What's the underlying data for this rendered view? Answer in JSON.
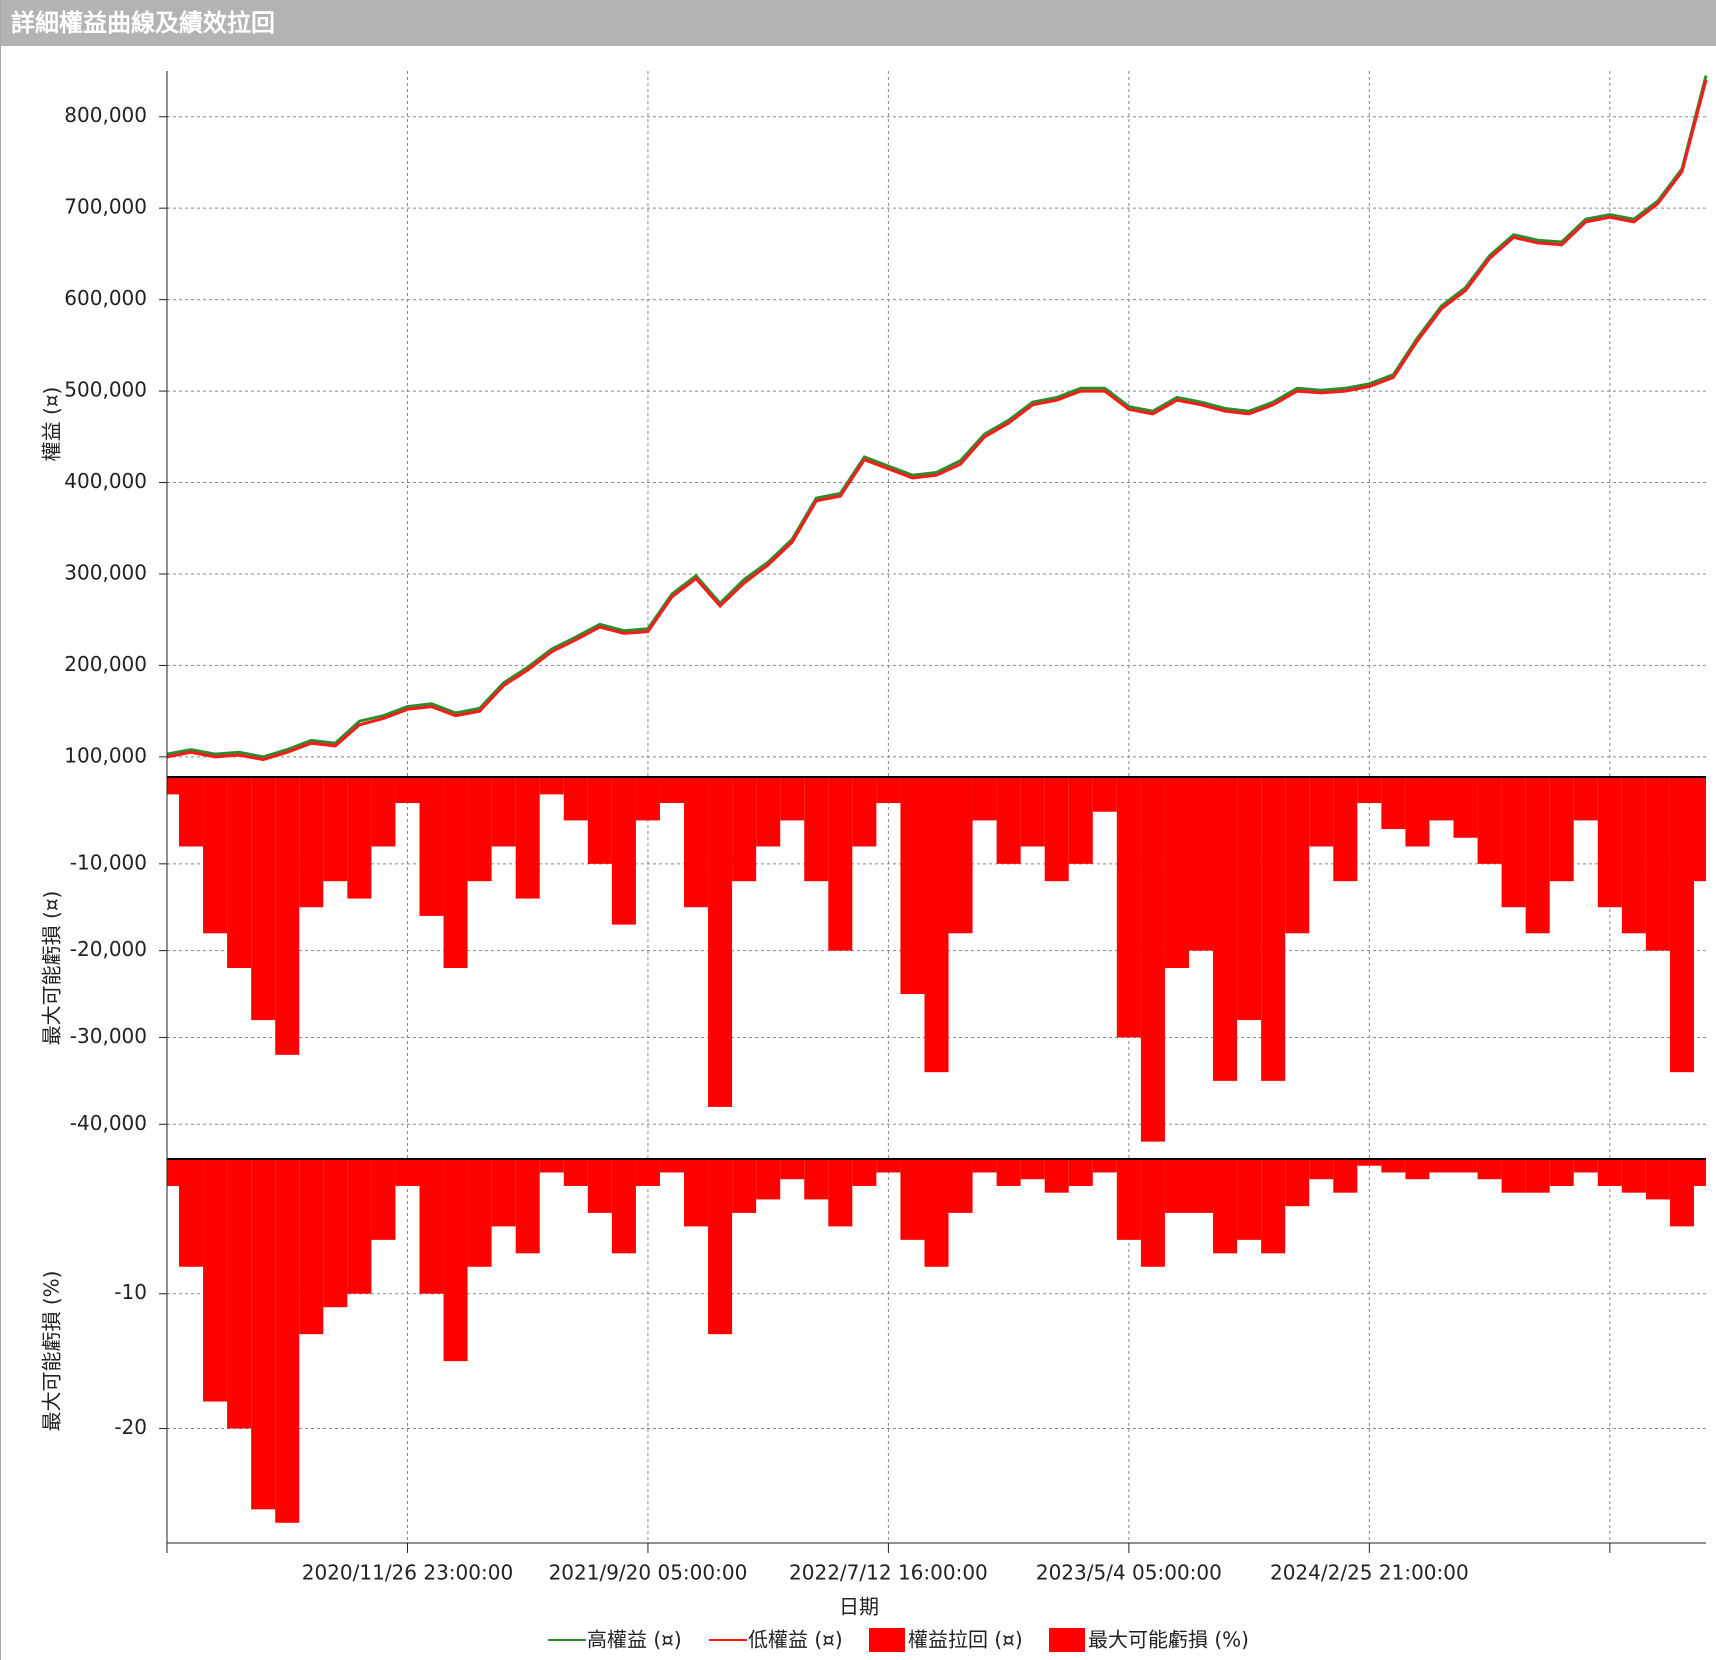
{
  "chart_data": [
    {
      "type": "line",
      "title": "詳細權益曲線及績效拉回",
      "y_label": "權益 (¤)",
      "x_label": "日期",
      "categories": [
        null,
        null,
        null,
        null,
        null,
        null,
        null,
        null,
        null,
        null,
        "2020/11/26 23:00:00",
        null,
        null,
        null,
        null,
        null,
        null,
        null,
        null,
        null,
        "2021/9/20 05:00:00",
        null,
        null,
        null,
        null,
        null,
        null,
        null,
        null,
        null,
        "2022/7/12 16:00:00",
        null,
        null,
        null,
        null,
        null,
        null,
        null,
        null,
        null,
        "2023/5/4 05:00:00",
        null,
        null,
        null,
        null,
        null,
        null,
        null,
        null,
        null,
        "2024/2/25 21:00:00",
        null,
        null,
        null,
        null,
        null,
        null,
        null,
        null,
        null,
        null,
        null,
        null,
        null,
        null
      ],
      "series": [
        {
          "name": "高權益 (¤)",
          "color": "#2e8b2e",
          "values": [
            103000,
            108000,
            103000,
            105000,
            100000,
            108000,
            118000,
            115000,
            139000,
            145000,
            155000,
            158000,
            148000,
            153000,
            181000,
            198000,
            218000,
            231000,
            245000,
            238000,
            240000,
            278000,
            298000,
            268000,
            294000,
            313000,
            338000,
            383000,
            388000,
            428000,
            418000,
            408000,
            411000,
            424000,
            453000,
            468000,
            488000,
            493000,
            503000,
            503000,
            483000,
            478000,
            493000,
            488000,
            481000,
            478000,
            488000,
            503000,
            501000,
            503000,
            508000,
            518000,
            558000,
            593000,
            613000,
            648000,
            671000,
            665000,
            663000,
            688000,
            693000,
            688000,
            708000,
            743000,
            845000
          ]
        },
        {
          "name": "低權益 (¤)",
          "color": "#ff1a1a",
          "values": [
            100000,
            105000,
            100000,
            102000,
            97000,
            105000,
            115000,
            112000,
            135000,
            142000,
            152000,
            155000,
            145000,
            150000,
            178000,
            195000,
            215000,
            228000,
            242000,
            235000,
            237000,
            275000,
            295000,
            265000,
            290000,
            310000,
            335000,
            380000,
            385000,
            425000,
            415000,
            405000,
            408000,
            420000,
            450000,
            465000,
            485000,
            490000,
            500000,
            500000,
            480000,
            475000,
            490000,
            485000,
            478000,
            475000,
            485000,
            500000,
            498000,
            500000,
            505000,
            515000,
            555000,
            590000,
            610000,
            645000,
            668000,
            662000,
            660000,
            685000,
            690000,
            685000,
            705000,
            740000,
            840000
          ]
        }
      ],
      "ylim": [
        78000,
        850000
      ],
      "yticks": [
        {
          "value": 100000,
          "label": "100,000"
        },
        {
          "value": 200000,
          "label": "200,000"
        },
        {
          "value": 300000,
          "label": "300,000"
        },
        {
          "value": 400000,
          "label": "400,000"
        },
        {
          "value": 500000,
          "label": "500,000"
        },
        {
          "value": 600000,
          "label": "600,000"
        },
        {
          "value": 700000,
          "label": "700,000"
        },
        {
          "value": 800000,
          "label": "800,000"
        }
      ],
      "grid": true
    },
    {
      "type": "bar",
      "y_label": "最大可能虧損 (¤)",
      "series": [
        {
          "name": "權益拉回 (¤)",
          "color": "#ff0000",
          "values": [
            -2000,
            -8000,
            -18000,
            -22000,
            -28000,
            -32000,
            -15000,
            -12000,
            -14000,
            -8000,
            -3000,
            -16000,
            -22000,
            -12000,
            -8000,
            -14000,
            -2000,
            -5000,
            -10000,
            -17000,
            -5000,
            -3000,
            -15000,
            -38000,
            -12000,
            -8000,
            -5000,
            -12000,
            -20000,
            -8000,
            -3000,
            -25000,
            -34000,
            -18000,
            -5000,
            -10000,
            -8000,
            -12000,
            -10000,
            -4000,
            -30000,
            -42000,
            -22000,
            -20000,
            -35000,
            -28000,
            -35000,
            -18000,
            -8000,
            -12000,
            -3000,
            -6000,
            -8000,
            -5000,
            -7000,
            -10000,
            -15000,
            -18000,
            -12000,
            -5000,
            -15000,
            -18000,
            -20000,
            -34000,
            -12000
          ]
        }
      ],
      "ylim": [
        -44000,
        0
      ],
      "yticks": [
        {
          "value": -40000,
          "label": "-40,000"
        },
        {
          "value": -30000,
          "label": "-30,000"
        },
        {
          "value": -20000,
          "label": "-20,000"
        },
        {
          "value": -10000,
          "label": "-10,000"
        }
      ],
      "grid": true
    },
    {
      "type": "bar",
      "y_label": "最大可能虧損 (%)",
      "series": [
        {
          "name": "最大可能虧損 (%)",
          "color": "#ff0000",
          "values": [
            -2,
            -8,
            -18,
            -20,
            -26,
            -27,
            -13,
            -11,
            -10,
            -6,
            -2,
            -10,
            -15,
            -8,
            -5,
            -7,
            -1,
            -2,
            -4,
            -7,
            -2,
            -1,
            -5,
            -13,
            -4,
            -3,
            -1.5,
            -3,
            -5,
            -2,
            -1,
            -6,
            -8,
            -4,
            -1,
            -2,
            -1.5,
            -2.5,
            -2,
            -1,
            -6,
            -8,
            -4,
            -4,
            -7,
            -6,
            -7,
            -3.5,
            -1.5,
            -2.5,
            -0.5,
            -1,
            -1.5,
            -1,
            -1,
            -1.5,
            -2.5,
            -2.5,
            -2,
            -1,
            -2,
            -2.5,
            -3,
            -5,
            -2
          ]
        }
      ],
      "ylim": [
        -28.5,
        0
      ],
      "yticks": [
        -20,
        -10
      ],
      "grid": true
    }
  ]
}
